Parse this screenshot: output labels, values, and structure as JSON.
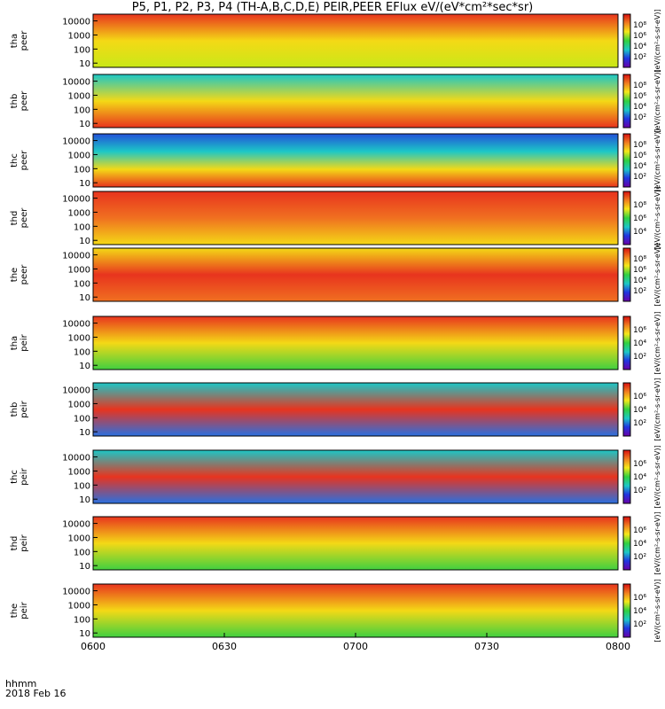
{
  "title": "P5, P1, P2, P3, P4 (TH-A,B,C,D,E) PEIR,PEER EFlux eV/(eV*cm²*sec*sr)",
  "x_axis": {
    "row_label": "hhmm",
    "date_label": "2018 Feb 16",
    "ticks": [
      "0600",
      "0630",
      "0700",
      "0730",
      "0800"
    ]
  },
  "colorbar_label": "[eV/(cm²-s-sr-eV)]",
  "chart_data": {
    "type": "heatmap",
    "x_range": [
      "0600",
      "0800"
    ],
    "y_scale": "log",
    "colorscale": "rainbow (purple-blue-cyan-green-yellow-red)",
    "panels": [
      {
        "ylabel": "tha\npeer",
        "yticks": [
          "10",
          "100",
          "1000",
          "10000"
        ],
        "ylim": [
          5,
          30000
        ],
        "cbar_ticks": [
          "10²",
          "10⁴",
          "10⁶",
          "10⁸"
        ],
        "colors": [
          "#e8341e",
          "#f4d916",
          "#c9e818"
        ]
      },
      {
        "ylabel": "thb\npeer",
        "yticks": [
          "10",
          "100",
          "1000",
          "10000"
        ],
        "ylim": [
          5,
          30000
        ],
        "cbar_ticks": [
          "10²",
          "10⁴",
          "10⁶",
          "10⁸"
        ],
        "colors": [
          "#1cc7c7",
          "#f4d916",
          "#e8341e"
        ]
      },
      {
        "ylabel": "thc\npeer",
        "yticks": [
          "10",
          "100",
          "1000",
          "10000"
        ],
        "ylim": [
          5,
          30000
        ],
        "cbar_ticks": [
          "10²",
          "10⁴",
          "10⁶",
          "10⁸"
        ],
        "colors": [
          "#2250d8",
          "#1cc7c7",
          "#f4d916",
          "#e8341e"
        ]
      },
      {
        "ylabel": "thd\npeer",
        "yticks": [
          "10",
          "100",
          "1000",
          "10000"
        ],
        "ylim": [
          5,
          30000
        ],
        "cbar_ticks": [
          "10⁴",
          "10⁶",
          "10⁸"
        ],
        "colors": [
          "#e8341e",
          "#f07020",
          "#f4d916"
        ]
      },
      {
        "ylabel": "the\npeer",
        "yticks": [
          "10",
          "100",
          "1000",
          "10000"
        ],
        "ylim": [
          5,
          30000
        ],
        "cbar_ticks": [
          "10²",
          "10⁴",
          "10⁶",
          "10⁸"
        ],
        "colors": [
          "#f4d916",
          "#e8341e",
          "#f07020"
        ]
      },
      {
        "ylabel": "tha\npeir",
        "yticks": [
          "10",
          "100",
          "1000",
          "10000"
        ],
        "ylim": [
          5,
          30000
        ],
        "cbar_ticks": [
          "10²",
          "10⁴",
          "10⁶"
        ],
        "colors": [
          "#e8341e",
          "#f4d916",
          "#40d040"
        ]
      },
      {
        "ylabel": "thb\npeir",
        "yticks": [
          "10",
          "100",
          "1000",
          "10000"
        ],
        "ylim": [
          5,
          30000
        ],
        "cbar_ticks": [
          "10²",
          "10⁴",
          "10⁶"
        ],
        "colors": [
          "#1cc7c7",
          "#e8341e",
          "#2a70e0"
        ]
      },
      {
        "ylabel": "thc\npeir",
        "yticks": [
          "10",
          "100",
          "1000",
          "10000"
        ],
        "ylim": [
          5,
          30000
        ],
        "cbar_ticks": [
          "10²",
          "10⁴",
          "10⁶"
        ],
        "colors": [
          "#1cc7c7",
          "#e8341e",
          "#2a70e0"
        ]
      },
      {
        "ylabel": "thd\npeir",
        "yticks": [
          "10",
          "100",
          "1000",
          "10000"
        ],
        "ylim": [
          5,
          30000
        ],
        "cbar_ticks": [
          "10²",
          "10⁴",
          "10⁶"
        ],
        "colors": [
          "#e8341e",
          "#f4d916",
          "#40d040"
        ]
      },
      {
        "ylabel": "the\npeir",
        "yticks": [
          "10",
          "100",
          "1000",
          "10000"
        ],
        "ylim": [
          5,
          30000
        ],
        "cbar_ticks": [
          "10²",
          "10⁴",
          "10⁶"
        ],
        "colors": [
          "#e8341e",
          "#f4d916",
          "#40d040"
        ]
      }
    ]
  }
}
